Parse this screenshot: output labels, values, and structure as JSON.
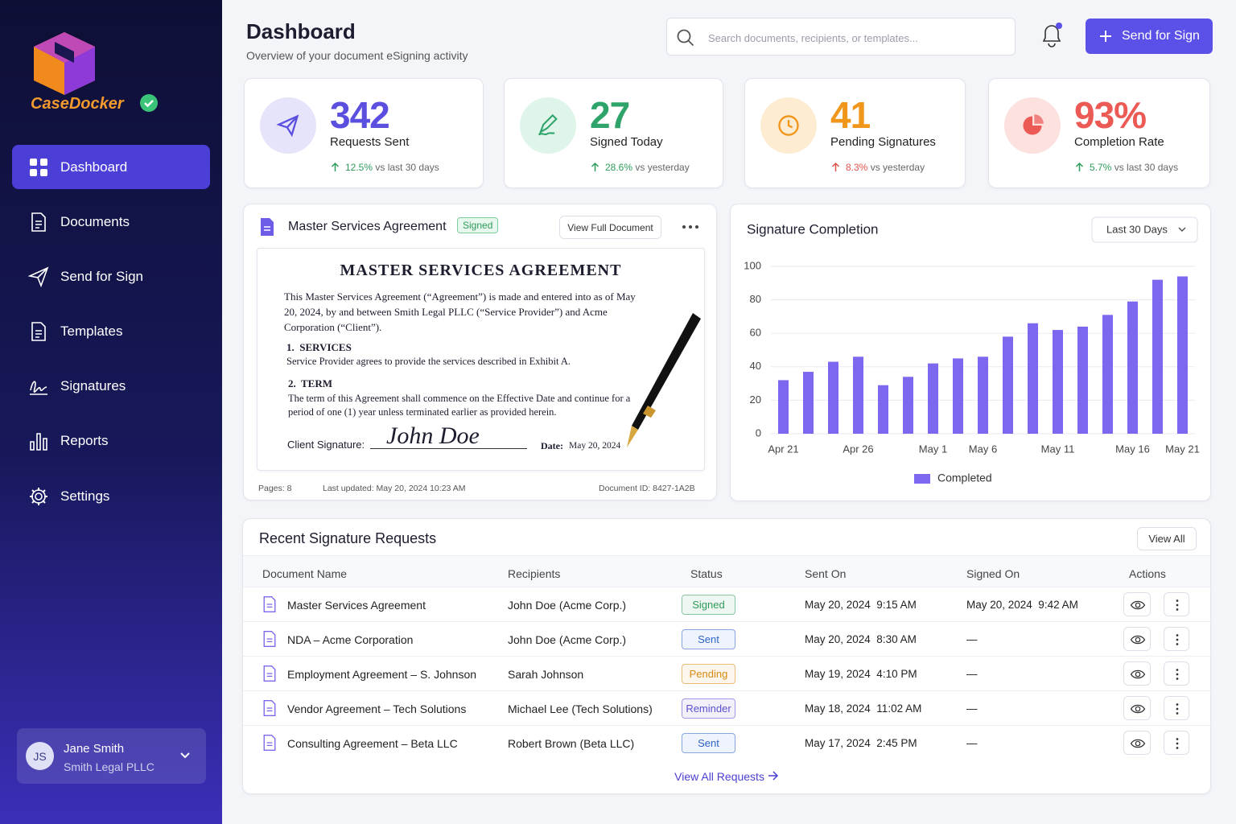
{
  "sidebar": {
    "brand": "CaseDocker",
    "nav": [
      "Dashboard",
      "Documents",
      "Send for Sign",
      "Templates",
      "Signatures",
      "Reports",
      "Settings"
    ],
    "user": {
      "initials": "JS",
      "name": "Jane Smith",
      "org": "Smith Legal PLLC"
    }
  },
  "header": {
    "title": "Dashboard",
    "subtitle": "Overview of your document eSigning activity",
    "search_placeholder": "Search documents, recipients, or templates...",
    "button": "Send for Sign"
  },
  "stats": [
    {
      "value": "342",
      "label": "Requests Sent",
      "change": "12.5%",
      "compare": "vs last 30 days",
      "color": "#5b4fe0",
      "change_color": "#2e9b5a"
    },
    {
      "value": "27",
      "label": "Signed Today",
      "change": "28.6%",
      "compare": "vs yesterday",
      "color": "#2ea36a",
      "change_color": "#2e9b5a"
    },
    {
      "value": "41",
      "label": "Pending Signatures",
      "change": "8.3%",
      "compare": "vs yesterday",
      "color": "#f0961a",
      "change_color": "#e0524a"
    },
    {
      "value": "93%",
      "label": "Completion Rate",
      "change": "5.7%",
      "compare": "vs last 30 days",
      "color": "#ec5a55",
      "change_color": "#2e9b5a"
    }
  ],
  "preview": {
    "title": "Master Services Agreement",
    "badge": "Signed",
    "button": "View Full Document",
    "doc": {
      "heading": "MASTER SERVICES AGREEMENT",
      "intro": "This Master Services Agreement (“Agreement”) is made and entered into as of May 20, 2024, by and between Smith Legal PLLC (“Service Provider”) and Acme Corporation (“Client”).",
      "sections": [
        {
          "num": "1.",
          "title": "SERVICES",
          "body": "Service Provider agrees to provide the services described in Exhibit A."
        },
        {
          "num": "2.",
          "title": "TERM",
          "body": "The term of this Agreement shall commence on the Effective Date and continue for a period of one (1) year unless terminated earlier as provided herein."
        }
      ],
      "signature_label": "Client Signature:",
      "signature": "John Doe",
      "date_label": "Date:",
      "date": "May 20, 2024"
    },
    "pages": "Pages: 8",
    "updated": "Last updated: May 20, 2024 10:23 AM",
    "doc_id": "Document ID: 8427-1A2B"
  },
  "chart_data": {
    "type": "bar",
    "title": "Signature Completion",
    "range_selector": "Last 30 Days",
    "categories": [
      "Apr 21",
      null,
      null,
      "Apr 26",
      null,
      null,
      "May 1",
      null,
      "May 6",
      null,
      null,
      "May 11",
      null,
      null,
      "May 16",
      null,
      "May 21"
    ],
    "series": [
      {
        "name": "Completed",
        "color": "#7b68ee",
        "values": [
          32,
          37,
          43,
          46,
          29,
          34,
          42,
          45,
          46,
          58,
          66,
          62,
          64,
          71,
          79,
          92,
          94
        ]
      }
    ],
    "ylim": [
      0,
      100
    ],
    "yticks": [
      0,
      20,
      40,
      60,
      80,
      100
    ],
    "grid": true
  },
  "table": {
    "title": "Recent Signature Requests",
    "view_all": "View All",
    "columns": [
      "Document Name",
      "Recipients",
      "Status",
      "Sent On",
      "Signed On",
      "Actions"
    ],
    "rows": [
      {
        "document": "Master Services Agreement",
        "recipients": "John Doe (Acme Corp.)",
        "status": "Signed",
        "status_color": "#2e9b5a",
        "sent": "May 20, 2024  9:15 AM",
        "signed": "May 20, 2024  9:42 AM"
      },
      {
        "document": "NDA – Acme Corporation",
        "recipients": "John Doe (Acme Corp.)",
        "status": "Sent",
        "status_color": "#2f64c9",
        "sent": "May 20, 2024  8:30 AM",
        "signed": "—"
      },
      {
        "document": "Employment Agreement – S. Johnson",
        "recipients": "Sarah Johnson",
        "status": "Pending",
        "status_color": "#d98a10",
        "sent": "May 19, 2024  4:10 PM",
        "signed": "—"
      },
      {
        "document": "Vendor Agreement – Tech Solutions",
        "recipients": "Michael Lee (Tech Solutions)",
        "status": "Reminder",
        "status_color": "#5b4fd0",
        "sent": "May 18, 2024  11:02 AM",
        "signed": "—"
      },
      {
        "document": "Consulting Agreement – Beta LLC",
        "recipients": "Robert Brown (Beta LLC)",
        "status": "Sent",
        "status_color": "#2f64c9",
        "sent": "May 17, 2024  2:45 PM",
        "signed": "—"
      }
    ],
    "footer_link": "View All Requests"
  }
}
